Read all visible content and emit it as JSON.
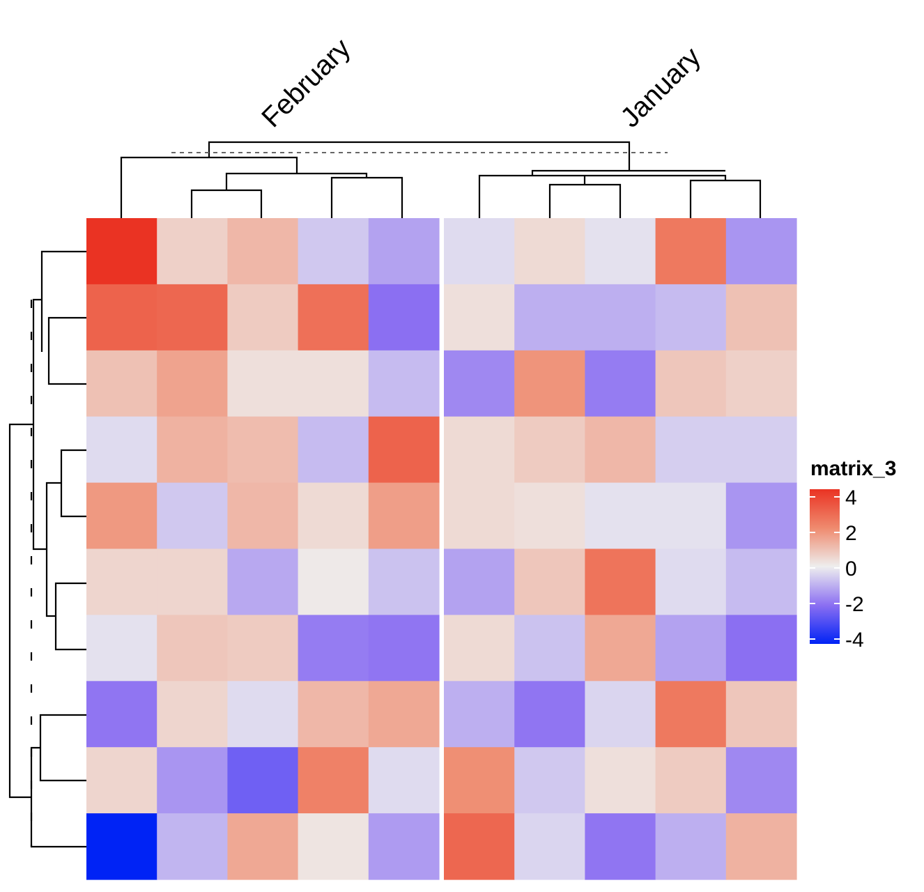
{
  "chart_data": {
    "type": "heatmap",
    "legend_title": "matrix_3",
    "column_groups": [
      {
        "label": "February",
        "columns": 5
      },
      {
        "label": "January",
        "columns": 5
      }
    ],
    "color_scale": {
      "stops": [
        {
          "value": -4,
          "color": "#0023f5"
        },
        {
          "value": -2,
          "color": "#8b6ff2"
        },
        {
          "value": 0,
          "color": "#eeeeee"
        },
        {
          "value": 2,
          "color": "#ef8a6e"
        },
        {
          "value": 4,
          "color": "#ea3323"
        }
      ],
      "ticks": [
        "4",
        "2",
        "0",
        "-2",
        "-4"
      ]
    },
    "values": [
      [
        4.0,
        0.6,
        1.1,
        -0.6,
        -1.2,
        -0.3,
        0.4,
        -0.2,
        2.4,
        -1.4
      ],
      [
        2.9,
        2.8,
        0.7,
        2.6,
        -2.0,
        0.3,
        -1.0,
        -1.0,
        -0.8,
        0.9
      ],
      [
        0.9,
        1.5,
        0.3,
        0.3,
        -0.8,
        -1.6,
        1.8,
        -1.8,
        0.8,
        0.6
      ],
      [
        -0.3,
        1.2,
        1.0,
        -0.8,
        2.9,
        0.4,
        0.7,
        1.1,
        -0.5,
        -0.5
      ],
      [
        1.7,
        -0.6,
        1.1,
        0.4,
        1.6,
        0.4,
        0.3,
        -0.2,
        -0.2,
        -1.4
      ],
      [
        0.5,
        0.5,
        -1.1,
        0.1,
        -0.7,
        -1.2,
        0.8,
        2.5,
        -0.3,
        -0.8
      ],
      [
        -0.2,
        0.8,
        0.7,
        -1.8,
        -1.9,
        0.4,
        -0.7,
        1.4,
        -1.2,
        -2.0
      ],
      [
        -1.9,
        0.5,
        -0.3,
        1.1,
        1.4,
        -1.0,
        -1.9,
        -0.4,
        2.4,
        0.8
      ],
      [
        0.5,
        -1.4,
        -2.4,
        2.2,
        -0.3,
        1.9,
        -0.6,
        0.3,
        0.7,
        -1.6
      ],
      [
        -4.0,
        -0.9,
        1.4,
        0.2,
        -1.3,
        2.8,
        -0.4,
        -1.9,
        -1.0,
        1.2
      ]
    ]
  }
}
